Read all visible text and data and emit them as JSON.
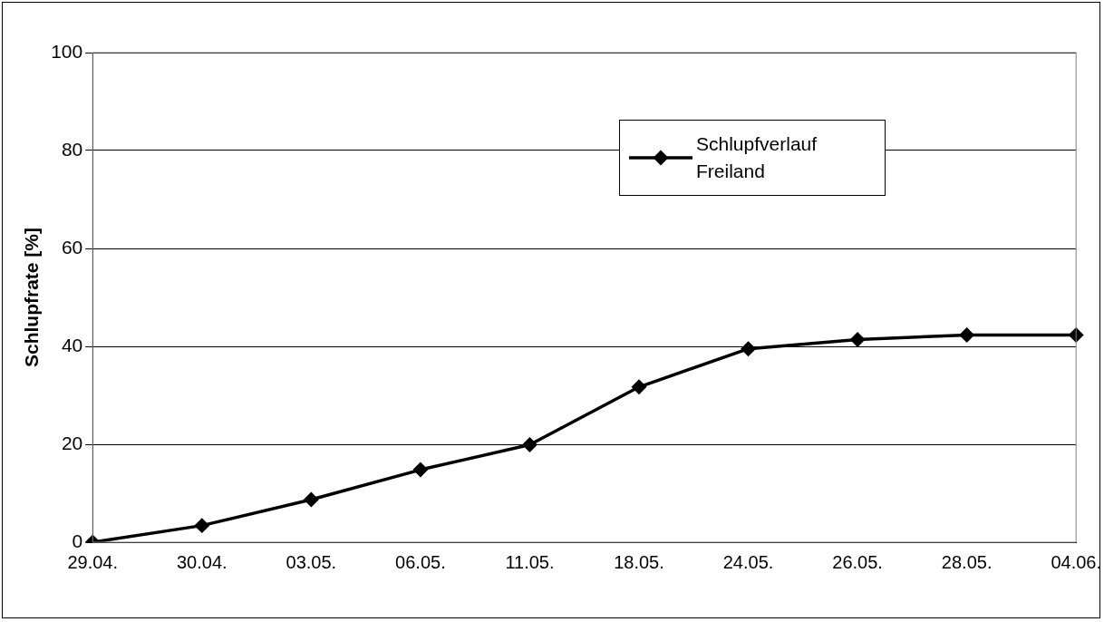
{
  "chart_data": {
    "type": "line",
    "ylabel": "Schlupfrate [%]",
    "categories": [
      "29.04.",
      "30.04.",
      "03.05.",
      "06.05.",
      "11.05.",
      "18.05.",
      "24.05.",
      "26.05.",
      "28.05.",
      "04.06."
    ],
    "series": [
      {
        "name": "Schlupfverlauf Freiland",
        "color": "#000000",
        "values": [
          0,
          3.4,
          8.7,
          14.8,
          19.9,
          31.7,
          39.5,
          41.4,
          42.3,
          42.3
        ]
      }
    ],
    "ylim": [
      0,
      100
    ],
    "yticks": [
      0,
      20,
      40,
      60,
      80,
      100
    ],
    "grid": "y",
    "legend": "top right",
    "marker": "diamond",
    "line_style": "solid"
  }
}
